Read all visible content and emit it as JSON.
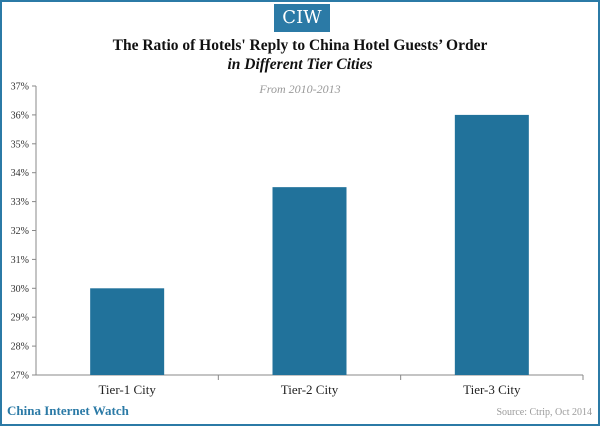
{
  "brand": {
    "logo_text": "CIW",
    "name": "China Internet Watch",
    "color": "#2b7aa6"
  },
  "source": "Source: Ctrip, Oct 2014",
  "chart_data": {
    "type": "bar",
    "title": "The Ratio of Hotels' Reply to China Hotel Guests’ Order",
    "subtitle": "in Different Tier Cities",
    "period": "From 2010-2013",
    "categories": [
      "Tier-1 City",
      "Tier-2 City",
      "Tier-3 City"
    ],
    "values": [
      30,
      33.5,
      36
    ],
    "ylim": [
      27,
      37
    ],
    "yticks": [
      "27%",
      "28%",
      "29%",
      "30%",
      "31%",
      "32%",
      "33%",
      "34%",
      "35%",
      "36%",
      "37%"
    ],
    "xlabel": "",
    "ylabel": "",
    "grid": false,
    "bar_color": "#21729b"
  }
}
